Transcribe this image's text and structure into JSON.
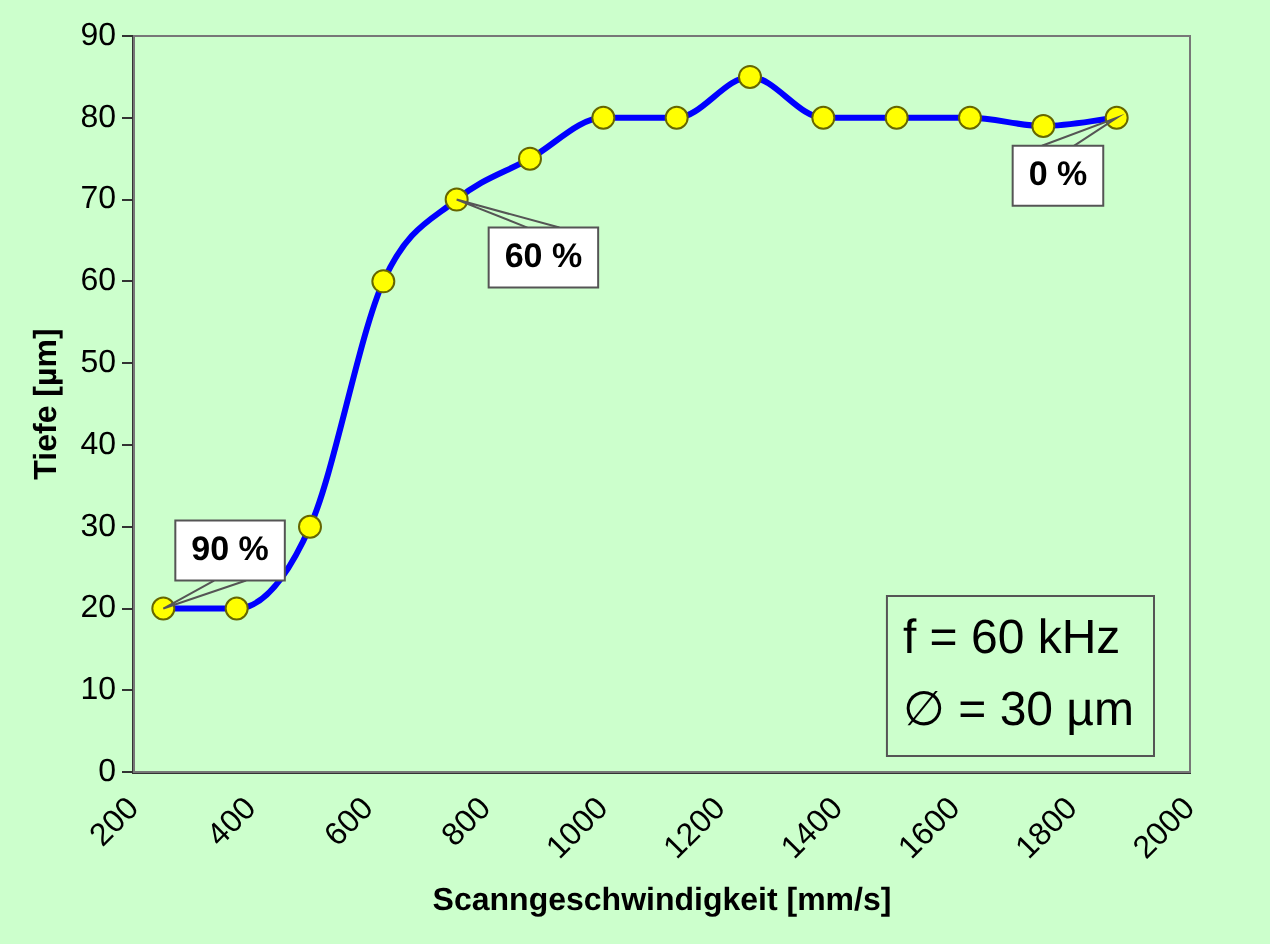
{
  "chart_data": {
    "type": "line",
    "xlabel": "Scanngeschwindigkeit [mm/s]",
    "ylabel": "Tiefe [µm]",
    "x": [
      250,
      375,
      500,
      625,
      750,
      875,
      1000,
      1125,
      1250,
      1375,
      1500,
      1625,
      1750,
      1875
    ],
    "series": [
      {
        "color": "#0000ff",
        "values": [
          20,
          20,
          30,
          60,
          70,
          75,
          80,
          80,
          85,
          80,
          80,
          80,
          79,
          80
        ]
      }
    ],
    "xlim": [
      200,
      2000
    ],
    "xticks": [
      200,
      400,
      600,
      800,
      1000,
      1200,
      1400,
      1600,
      1800,
      2000
    ],
    "ylim": [
      0,
      90
    ],
    "yticks": [
      0,
      10,
      20,
      30,
      40,
      50,
      60,
      70,
      80,
      90
    ],
    "grid": false,
    "legend": false,
    "marker": "circle",
    "line_style": "solid",
    "annotations": [
      {
        "text": "90 %",
        "x": 250,
        "y": 20
      },
      {
        "text": "60 %",
        "x": 750,
        "y": 70
      },
      {
        "text": "0 %",
        "x": 1875,
        "y": 80
      },
      "f = 60 kHz",
      "∅ = 30 µm"
    ]
  }
}
